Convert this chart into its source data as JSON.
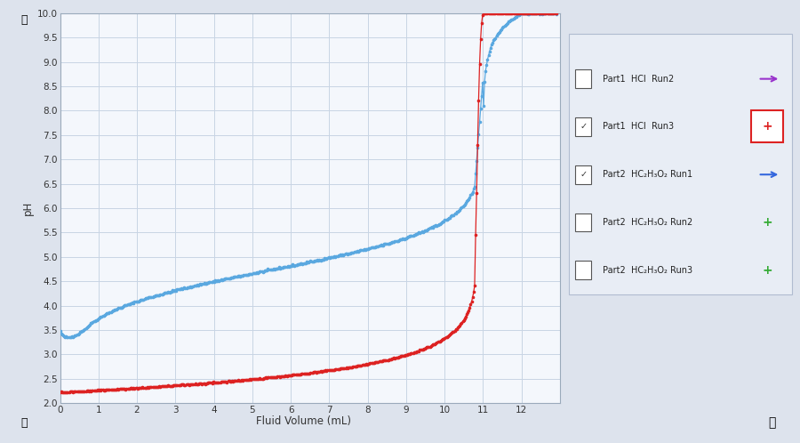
{
  "xlabel": "Fluid Volume (mL)",
  "ylabel": "pH",
  "xlim": [
    0,
    13
  ],
  "ylim": [
    2.0,
    10.0
  ],
  "xticks": [
    0,
    1,
    2,
    3,
    4,
    5,
    6,
    7,
    8,
    9,
    10,
    11,
    12
  ],
  "yticks": [
    2.0,
    2.5,
    3.0,
    3.5,
    4.0,
    4.5,
    5.0,
    5.5,
    6.0,
    6.5,
    7.0,
    7.5,
    8.0,
    8.5,
    9.0,
    9.5,
    10.0
  ],
  "blue_color": "#5aa8e0",
  "red_color": "#dd2222",
  "plot_bg": "#f4f7fc",
  "fig_bg": "#dde3ed",
  "grid_color": "#c8d4e4",
  "legend_bg": "#e8edf5",
  "legend_border": "#b0bcd0",
  "legend_labels": [
    "Part1  HCl  Run2",
    "Part1  HCl  Run3",
    "Part2  HC₂H₃O₂ Run1",
    "Part2  HC₂H₃O₂ Run2",
    "Part2  HC₂H₃O₂ Run3"
  ],
  "legend_colors": [
    "#9933cc",
    "#dd2222",
    "#3366dd",
    "#33aa33",
    "#33aa33"
  ],
  "checked": [
    false,
    true,
    true,
    false,
    false
  ],
  "blue_Ve": 11.0,
  "red_Ve": 10.85,
  "blue_start_ph": 3.47,
  "red_start_ph": 2.23
}
